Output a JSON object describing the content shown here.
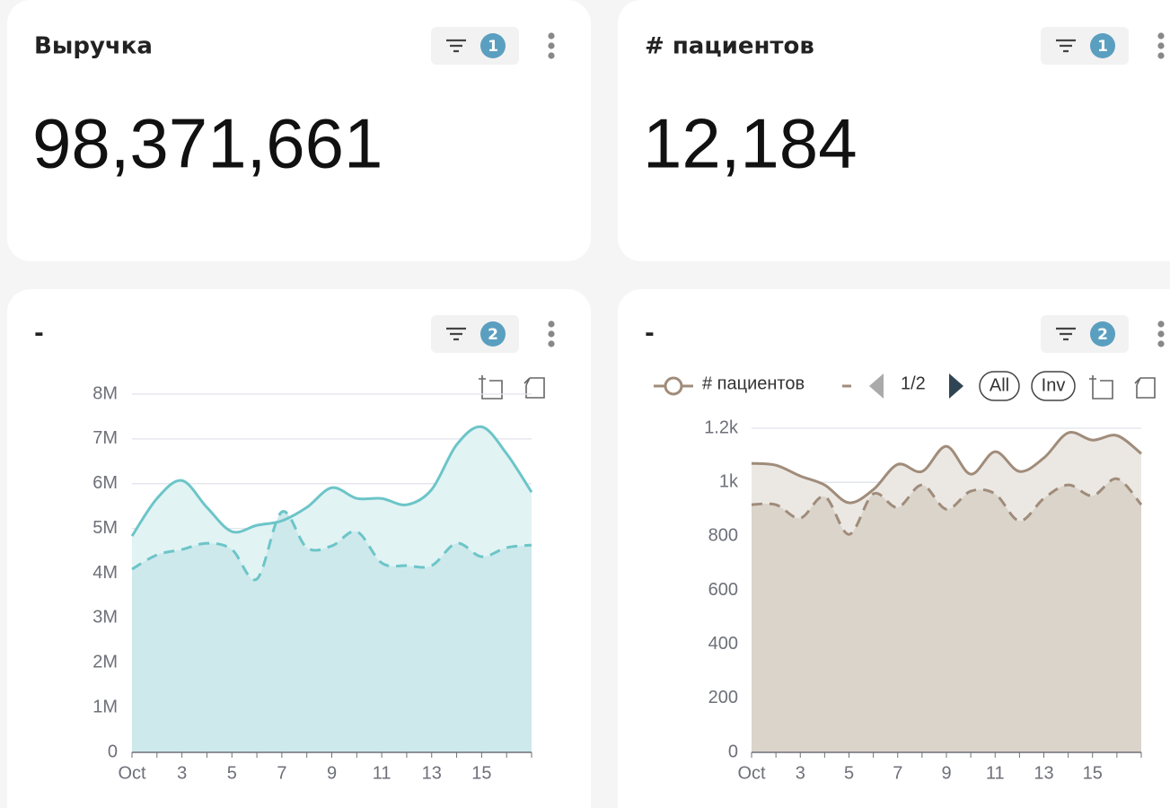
{
  "cards": [
    {
      "title": "Выручка",
      "filter_count": 1,
      "value": "98,371,661"
    },
    {
      "title": "# пациентов",
      "filter_count": 1,
      "value": "12,184"
    },
    {
      "title": "-",
      "filter_count": 2
    },
    {
      "title": "-",
      "filter_count": 2
    }
  ],
  "chart_data": [
    {
      "type": "line",
      "smooth": true,
      "area": true,
      "legend": false,
      "categories": [
        "Oct",
        null,
        "3",
        null,
        "5",
        null,
        "7",
        null,
        "9",
        null,
        "11",
        null,
        "13",
        null,
        "15",
        null,
        null
      ],
      "ylim": [
        0,
        8000000
      ],
      "yticks": [
        {
          "value": 0,
          "label": "0"
        },
        {
          "value": 1000000,
          "label": "1M"
        },
        {
          "value": 2000000,
          "label": "2M"
        },
        {
          "value": 3000000,
          "label": "3M"
        },
        {
          "value": 4000000,
          "label": "4M"
        },
        {
          "value": 5000000,
          "label": "5M"
        },
        {
          "value": 6000000,
          "label": "6M"
        },
        {
          "value": 7000000,
          "label": "7M"
        },
        {
          "value": 8000000,
          "label": "8M"
        }
      ],
      "grid": true,
      "series": [
        {
          "color": "#6cc5c8",
          "area_color": "#e2f3f4",
          "line_style": "solid",
          "values": [
            4830000,
            5670000,
            6070000,
            5470000,
            4930000,
            5070000,
            5170000,
            5470000,
            5910000,
            5670000,
            5670000,
            5530000,
            5870000,
            6870000,
            7270000,
            6670000,
            5810000
          ]
        },
        {
          "color": "#6cc5c8",
          "area_color": "#cde9ec",
          "line_style": "dashed",
          "values": [
            4090000,
            4410000,
            4530000,
            4670000,
            4530000,
            3870000,
            5370000,
            4570000,
            4610000,
            4930000,
            4230000,
            4170000,
            4170000,
            4670000,
            4370000,
            4570000,
            4630000
          ]
        }
      ]
    },
    {
      "type": "line",
      "smooth": true,
      "area": true,
      "legend": true,
      "legend_pager": "1/2",
      "legend_buttons": [
        "All",
        "Inv"
      ],
      "categories": [
        "Oct",
        null,
        "3",
        null,
        "5",
        null,
        "7",
        null,
        "9",
        null,
        "11",
        null,
        "13",
        null,
        "15",
        null,
        null
      ],
      "ylim": [
        0,
        1200
      ],
      "yticks": [
        0,
        200,
        400,
        600,
        800,
        {
          "value": 1000,
          "label": "1k"
        },
        {
          "value": 1200,
          "label": "1.2k"
        }
      ],
      "grid": true,
      "series": [
        {
          "name": "# пациентов",
          "color": "#a08c7a",
          "area_color": "#ebe8e4",
          "line_style": "solid",
          "values": [
            1070,
            1063,
            1023,
            990,
            924,
            973,
            1066,
            1040,
            1133,
            1030,
            1113,
            1040,
            1090,
            1183,
            1156,
            1173,
            1106
          ]
        },
        {
          "color": "#a08c7a",
          "area_color": "#dbd4cb",
          "line_style": "dashed",
          "values": [
            917,
            917,
            867,
            947,
            807,
            957,
            907,
            990,
            900,
            967,
            957,
            857,
            940,
            990,
            950,
            1013,
            917
          ]
        }
      ]
    }
  ]
}
